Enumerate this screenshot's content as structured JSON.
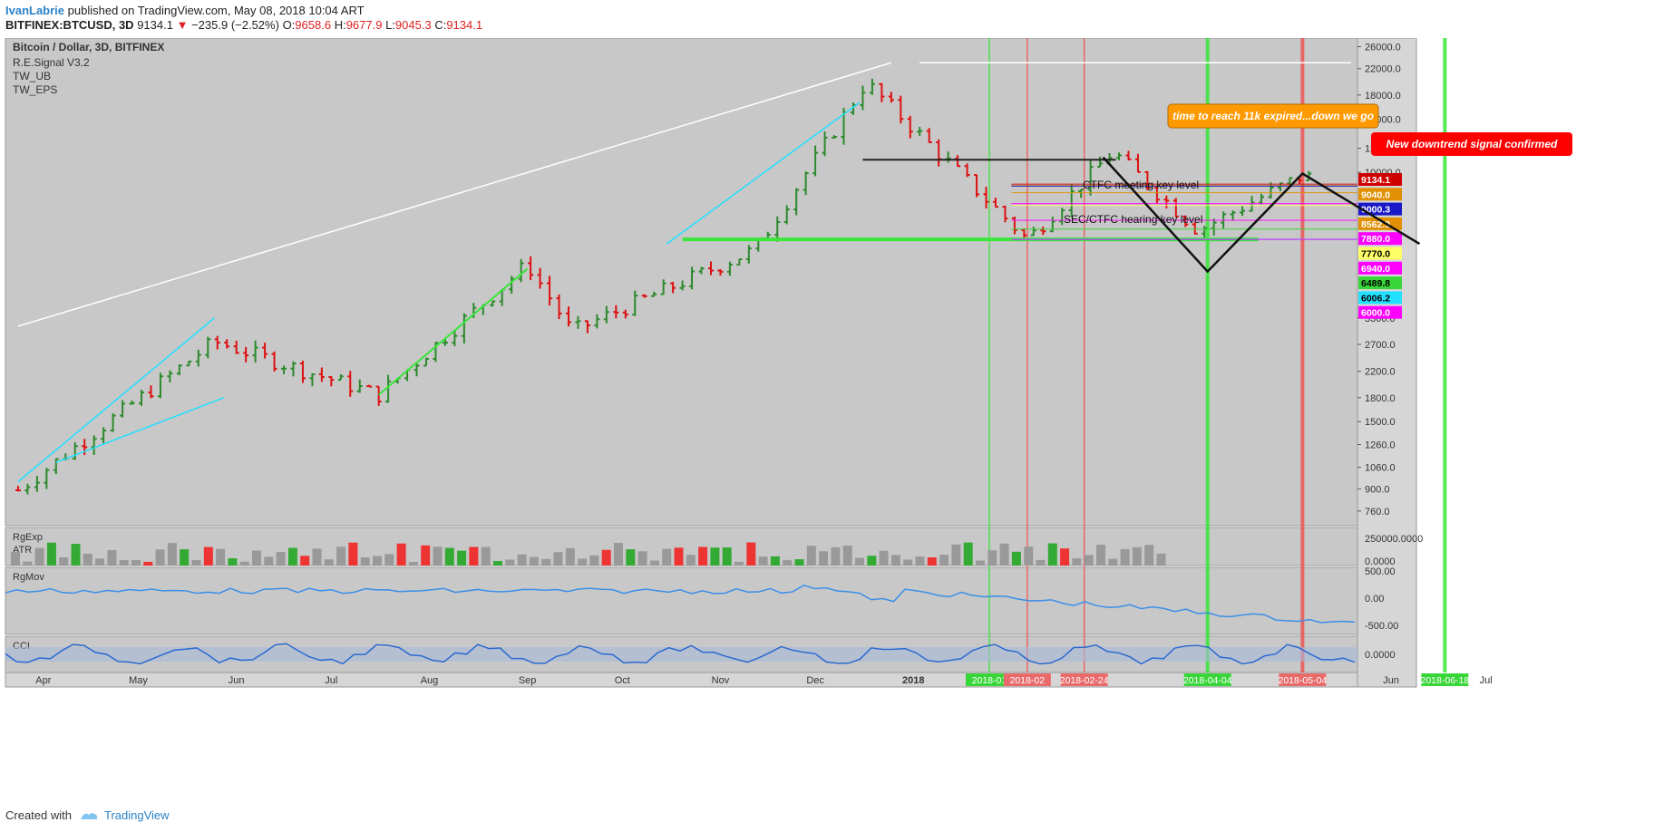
{
  "header": {
    "author": "IvanLabrie",
    "published": "published on TradingView.com, May 08, 2018 10:04 ART",
    "symbol": "BITFINEX:BTCUSD, 3D",
    "last": "9134.1",
    "change": "−235.9 (−2.52%)",
    "o_label": "O:",
    "o": "9658.6",
    "h_label": "H:",
    "h": "9677.9",
    "l_label": "L:",
    "l": "9045.3",
    "c_label": "C:",
    "c": "9134.1"
  },
  "footer": {
    "created": "Created with",
    "brand": "TradingView"
  },
  "colors": {
    "up": "#2d8a2d",
    "down": "#d11",
    "panel": "#c8c8c8",
    "grid": "#bdbdbd",
    "cyan": "#22e0ff",
    "lime": "#39e639",
    "yellow": "#f5f53a"
  },
  "chart_data": {
    "type": "candlestick",
    "title": "Bitcoin / Dollar, 3D, BITFINEX",
    "indicators": [
      "R.E.Signal V3.2",
      "TW_UB",
      "TW_EPS"
    ],
    "y_scale": "log",
    "ylim": [
      680,
      27000
    ],
    "y_ticks": [
      26000,
      22000,
      18000,
      15000,
      12000,
      10000,
      3300,
      2700,
      2200,
      1800,
      1500,
      1260,
      1060,
      900,
      760
    ],
    "y_tick_labels": [
      "26000.0",
      "22000.0",
      "18000.0",
      "15000.0",
      "12000.0",
      "10000.0",
      "3300.0",
      "2700.0",
      "2200.0",
      "1800.0",
      "1500.0",
      "1260.0",
      "1060.0",
      "900.0",
      "760.0"
    ],
    "x_labels": [
      {
        "label": "Apr",
        "date": "2017-04-01"
      },
      {
        "label": "May",
        "date": "2017-05-01"
      },
      {
        "label": "Jun",
        "date": "2017-06-01"
      },
      {
        "label": "Jul",
        "date": "2017-07-01"
      },
      {
        "label": "Aug",
        "date": "2017-08-01"
      },
      {
        "label": "Sep",
        "date": "2017-09-01"
      },
      {
        "label": "Oct",
        "date": "2017-10-01"
      },
      {
        "label": "Nov",
        "date": "2017-11-01"
      },
      {
        "label": "Dec",
        "date": "2017-12-01"
      },
      {
        "label": "2018",
        "date": "2018-01-01",
        "bold": true
      },
      {
        "label": "Jun",
        "date": "2018-06-01"
      },
      {
        "label": "Jul",
        "date": "2018-07-01"
      }
    ],
    "date_tags": [
      {
        "label": "2018-01",
        "date": "2018-01-25",
        "color": "#39d639"
      },
      {
        "label": "2018-02",
        "date": "2018-02-06",
        "color": "#e86a6a"
      },
      {
        "label": "2018-02-24",
        "date": "2018-02-24",
        "color": "#e86a6a"
      },
      {
        "label": "2018-04-04",
        "date": "2018-04-04",
        "color": "#39d639"
      },
      {
        "label": "2018-05-04",
        "date": "2018-05-04",
        "color": "#e86a6a"
      },
      {
        "label": "2018-06-18",
        "date": "2018-06-18",
        "color": "#39d639"
      }
    ],
    "vertical_lines": [
      {
        "date": "2018-01-25",
        "color": "#39e639",
        "width": 1.5
      },
      {
        "date": "2018-02-06",
        "color": "#e55",
        "width": 1.5
      },
      {
        "date": "2018-02-24",
        "color": "#e55",
        "width": 1.5
      },
      {
        "date": "2018-04-04",
        "color": "#39e639",
        "width": 4
      },
      {
        "date": "2018-05-04",
        "color": "#e55",
        "width": 4
      },
      {
        "date": "2018-06-18",
        "color": "#39e639",
        "width": 4
      }
    ],
    "price_tags": [
      {
        "label": "9134.1",
        "value": 9134.1,
        "bg": "#d00000",
        "fg": "#fff"
      },
      {
        "label": "9040.0",
        "value": 9040,
        "bg": "#e09000",
        "fg": "#fff"
      },
      {
        "label": "9000.3",
        "value": 9000.3,
        "bg": "#1919c8",
        "fg": "#fff"
      },
      {
        "label": "8562.9",
        "value": 8562.9,
        "bg": "#e09000",
        "fg": "#fff"
      },
      {
        "label": "7880.0",
        "value": 7880,
        "bg": "#ff00ff",
        "fg": "#fff"
      },
      {
        "label": "7770.0",
        "value": 7770,
        "bg": "#ffff66",
        "fg": "#000"
      },
      {
        "label": "6940.0",
        "value": 6940,
        "bg": "#ff00ff",
        "fg": "#fff"
      },
      {
        "label": "6489.8",
        "value": 6489.8,
        "bg": "#39d639",
        "fg": "#000"
      },
      {
        "label": "6006.2",
        "value": 6006.2,
        "bg": "#22e0ff",
        "fg": "#000"
      },
      {
        "label": "6000.0",
        "value": 6000,
        "bg": "#ff00ff",
        "fg": "#fff"
      }
    ],
    "annotations": [
      {
        "text": "time to reach 11k expired...down we go",
        "color": "#ff9900"
      },
      {
        "text": "New downtrend signal confirmed",
        "color": "#ff0000"
      },
      {
        "text": "CTFC meeting key level"
      },
      {
        "text": "SEC/CTFC hearing key level"
      }
    ],
    "key_points": [
      {
        "date": "2017-03-24",
        "low": 890
      },
      {
        "date": "2017-05-25",
        "high": 2760
      },
      {
        "date": "2017-07-16",
        "low": 1840
      },
      {
        "date": "2017-09-01",
        "high": 4980
      },
      {
        "date": "2017-09-15",
        "low": 2980
      },
      {
        "date": "2017-11-12",
        "low": 5560
      },
      {
        "date": "2017-12-17",
        "high": 19800
      },
      {
        "date": "2018-02-06",
        "low": 6000
      },
      {
        "date": "2018-03-05",
        "high": 11700
      },
      {
        "date": "2018-04-01",
        "low": 6430
      },
      {
        "date": "2018-05-05",
        "high": 9900
      },
      {
        "date": "2018-05-08",
        "close": 9134.1
      }
    ],
    "sub_panels": [
      {
        "name": "RgExp",
        "sub": "ATR",
        "y_ticks": [
          "250000.0000",
          "0.0000"
        ]
      },
      {
        "name": "RgMov",
        "y_ticks": [
          "500.00",
          "0.00",
          "-500.00"
        ]
      },
      {
        "name": "CCI",
        "y_ticks": [
          "0.0000"
        ]
      }
    ]
  }
}
